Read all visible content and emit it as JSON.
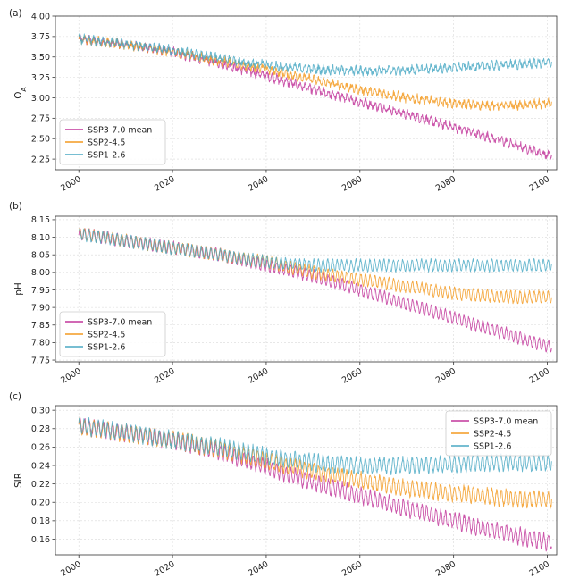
{
  "colors": {
    "ssp370": "#c2379b",
    "ssp245": "#f39a20",
    "ssp126": "#4aa9c4"
  },
  "chart_data": [
    {
      "type": "line",
      "panel_label": "(a)",
      "ylabel": "Ω",
      "ylabel_sub": "A",
      "xlim": [
        1995,
        2102
      ],
      "ylim": [
        2.12,
        4.0
      ],
      "x_ticks": [
        2000,
        2020,
        2040,
        2060,
        2080,
        2100
      ],
      "y_ticks": [
        2.25,
        2.5,
        2.75,
        3.0,
        3.25,
        3.5,
        3.75,
        4.0
      ],
      "y_tick_labels": [
        "2.25",
        "2.50",
        "2.75",
        "3.00",
        "3.25",
        "3.50",
        "3.75",
        "4.00"
      ],
      "grid": true,
      "legend_position": "lower-left",
      "seasonal_amplitude": 0.035,
      "noise": 0.035,
      "series": [
        {
          "name": "SSP3-7.0 mean",
          "color_key": "ssp370",
          "x": [
            2000,
            2010,
            2020,
            2030,
            2040,
            2050,
            2060,
            2070,
            2080,
            2090,
            2100
          ],
          "values": [
            3.72,
            3.65,
            3.56,
            3.42,
            3.27,
            3.1,
            2.95,
            2.8,
            2.64,
            2.48,
            2.3
          ]
        },
        {
          "name": "SSP2-4.5",
          "color_key": "ssp245",
          "x": [
            2000,
            2010,
            2020,
            2030,
            2040,
            2050,
            2060,
            2070,
            2080,
            2090,
            2100
          ],
          "values": [
            3.72,
            3.65,
            3.56,
            3.45,
            3.35,
            3.22,
            3.1,
            3.0,
            2.93,
            2.9,
            2.93
          ]
        },
        {
          "name": "SSP1-2.6",
          "color_key": "ssp126",
          "x": [
            2000,
            2010,
            2020,
            2030,
            2040,
            2050,
            2060,
            2070,
            2080,
            2090,
            2100
          ],
          "values": [
            3.72,
            3.66,
            3.58,
            3.48,
            3.4,
            3.35,
            3.33,
            3.34,
            3.37,
            3.4,
            3.43
          ]
        }
      ]
    },
    {
      "type": "line",
      "panel_label": "(b)",
      "ylabel": "pH",
      "ylabel_sub": "",
      "xlim": [
        1995,
        2102
      ],
      "ylim": [
        7.745,
        8.16
      ],
      "x_ticks": [
        2000,
        2020,
        2040,
        2060,
        2080,
        2100
      ],
      "y_ticks": [
        7.75,
        7.8,
        7.85,
        7.9,
        7.95,
        8.0,
        8.05,
        8.1,
        8.15
      ],
      "y_tick_labels": [
        "7.75",
        "7.80",
        "7.85",
        "7.90",
        "7.95",
        "8.00",
        "8.05",
        "8.10",
        "8.15"
      ],
      "grid": true,
      "legend_position": "lower-left",
      "seasonal_amplitude": 0.016,
      "noise": 0.004,
      "series": [
        {
          "name": "SSP3-7.0 mean",
          "color_key": "ssp370",
          "x": [
            2000,
            2010,
            2020,
            2030,
            2040,
            2050,
            2060,
            2070,
            2080,
            2090,
            2100
          ],
          "values": [
            8.11,
            8.09,
            8.07,
            8.05,
            8.02,
            7.99,
            7.95,
            7.91,
            7.87,
            7.83,
            7.79
          ]
        },
        {
          "name": "SSP2-4.5",
          "color_key": "ssp245",
          "x": [
            2000,
            2010,
            2020,
            2030,
            2040,
            2050,
            2060,
            2070,
            2080,
            2090,
            2100
          ],
          "values": [
            8.11,
            8.09,
            8.07,
            8.05,
            8.03,
            8.0,
            7.98,
            7.96,
            7.94,
            7.93,
            7.93
          ]
        },
        {
          "name": "SSP1-2.6",
          "color_key": "ssp126",
          "x": [
            2000,
            2010,
            2020,
            2030,
            2040,
            2050,
            2060,
            2070,
            2080,
            2090,
            2100
          ],
          "values": [
            8.11,
            8.09,
            8.07,
            8.05,
            8.03,
            8.02,
            8.02,
            8.02,
            8.02,
            8.02,
            8.02
          ]
        }
      ]
    },
    {
      "type": "line",
      "panel_label": "(c)",
      "ylabel": "SIR",
      "ylabel_sub": "",
      "xlim": [
        1995,
        2102
      ],
      "ylim": [
        0.143,
        0.305
      ],
      "x_ticks": [
        2000,
        2020,
        2040,
        2060,
        2080,
        2100
      ],
      "y_ticks": [
        0.16,
        0.18,
        0.2,
        0.22,
        0.24,
        0.26,
        0.28,
        0.3
      ],
      "y_tick_labels": [
        "0.16",
        "0.18",
        "0.20",
        "0.22",
        "0.24",
        "0.26",
        "0.28",
        "0.30"
      ],
      "grid": true,
      "legend_position": "upper-right",
      "seasonal_amplitude": 0.008,
      "noise": 0.0025,
      "series": [
        {
          "name": "SSP3-7.0 mean",
          "color_key": "ssp370",
          "x": [
            2000,
            2010,
            2020,
            2030,
            2040,
            2050,
            2060,
            2070,
            2080,
            2090,
            2100
          ],
          "values": [
            0.283,
            0.275,
            0.267,
            0.255,
            0.238,
            0.222,
            0.207,
            0.193,
            0.18,
            0.168,
            0.157
          ]
        },
        {
          "name": "SSP2-4.5",
          "color_key": "ssp245",
          "x": [
            2000,
            2010,
            2020,
            2030,
            2040,
            2050,
            2060,
            2070,
            2080,
            2090,
            2100
          ],
          "values": [
            0.283,
            0.275,
            0.268,
            0.258,
            0.245,
            0.234,
            0.224,
            0.215,
            0.21,
            0.205,
            0.203
          ]
        },
        {
          "name": "SSP1-2.6",
          "color_key": "ssp126",
          "x": [
            2000,
            2010,
            2020,
            2030,
            2040,
            2050,
            2060,
            2070,
            2080,
            2090,
            2100
          ],
          "values": [
            0.283,
            0.276,
            0.268,
            0.26,
            0.25,
            0.243,
            0.24,
            0.24,
            0.242,
            0.243,
            0.243
          ]
        }
      ]
    }
  ]
}
